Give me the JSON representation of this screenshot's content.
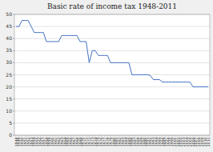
{
  "chart_data": {
    "type": "line",
    "title": "Basic rate of income tax 1948-2011",
    "x": [
      1948,
      1949,
      1950,
      1951,
      1952,
      1953,
      1954,
      1955,
      1956,
      1957,
      1958,
      1959,
      1960,
      1961,
      1962,
      1963,
      1964,
      1965,
      1966,
      1967,
      1968,
      1969,
      1970,
      1971,
      1972,
      1973,
      1974,
      1975,
      1976,
      1977,
      1978,
      1979,
      1980,
      1981,
      1982,
      1983,
      1984,
      1985,
      1986,
      1987,
      1988,
      1989,
      1990,
      1991,
      1992,
      1993,
      1994,
      1995,
      1996,
      1997,
      1998,
      1999,
      2000,
      2001,
      2002,
      2003,
      2004,
      2005,
      2006,
      2007,
      2008,
      2009,
      2010,
      2011
    ],
    "values": [
      45,
      45,
      47.5,
      47.5,
      47.5,
      45,
      42.5,
      42.5,
      42.5,
      42.5,
      38.75,
      38.75,
      38.75,
      38.75,
      38.75,
      41.25,
      41.25,
      41.25,
      41.25,
      41.25,
      41.25,
      38.75,
      38.75,
      38.75,
      30,
      35,
      35,
      33,
      33,
      33,
      33,
      30,
      30,
      30,
      30,
      30,
      30,
      30,
      25,
      25,
      25,
      25,
      25,
      25,
      24.75,
      23,
      23,
      23,
      22,
      22,
      22,
      22,
      22,
      22,
      22,
      22,
      22,
      22,
      20,
      20,
      20,
      20,
      20,
      20
    ],
    "color": "#4472c4",
    "xlim": [
      1947.5,
      2011.5
    ],
    "xticks": [
      1948,
      1949,
      1950,
      1951,
      1952,
      1953,
      1954,
      1955,
      1956,
      1957,
      1958,
      1959,
      1960,
      1961,
      1962,
      1963,
      1964,
      1965,
      1966,
      1967,
      1968,
      1969,
      1970,
      1971,
      1972,
      1973,
      1974,
      1975,
      1976,
      1977,
      1978,
      1979,
      1980,
      1981,
      1982,
      1983,
      1984,
      1985,
      1986,
      1987,
      1988,
      1989,
      1990,
      1991,
      1992,
      1993,
      1994,
      1995,
      1996,
      1997,
      1998,
      1999,
      2000,
      2001,
      2002,
      2003,
      2004,
      2005,
      2006,
      2007,
      2008,
      2009,
      2010,
      2011
    ],
    "ylim": [
      0,
      50
    ],
    "yticks": [
      0,
      5,
      10,
      15,
      20,
      25,
      30,
      35,
      40,
      45,
      50
    ],
    "grid": "y"
  }
}
